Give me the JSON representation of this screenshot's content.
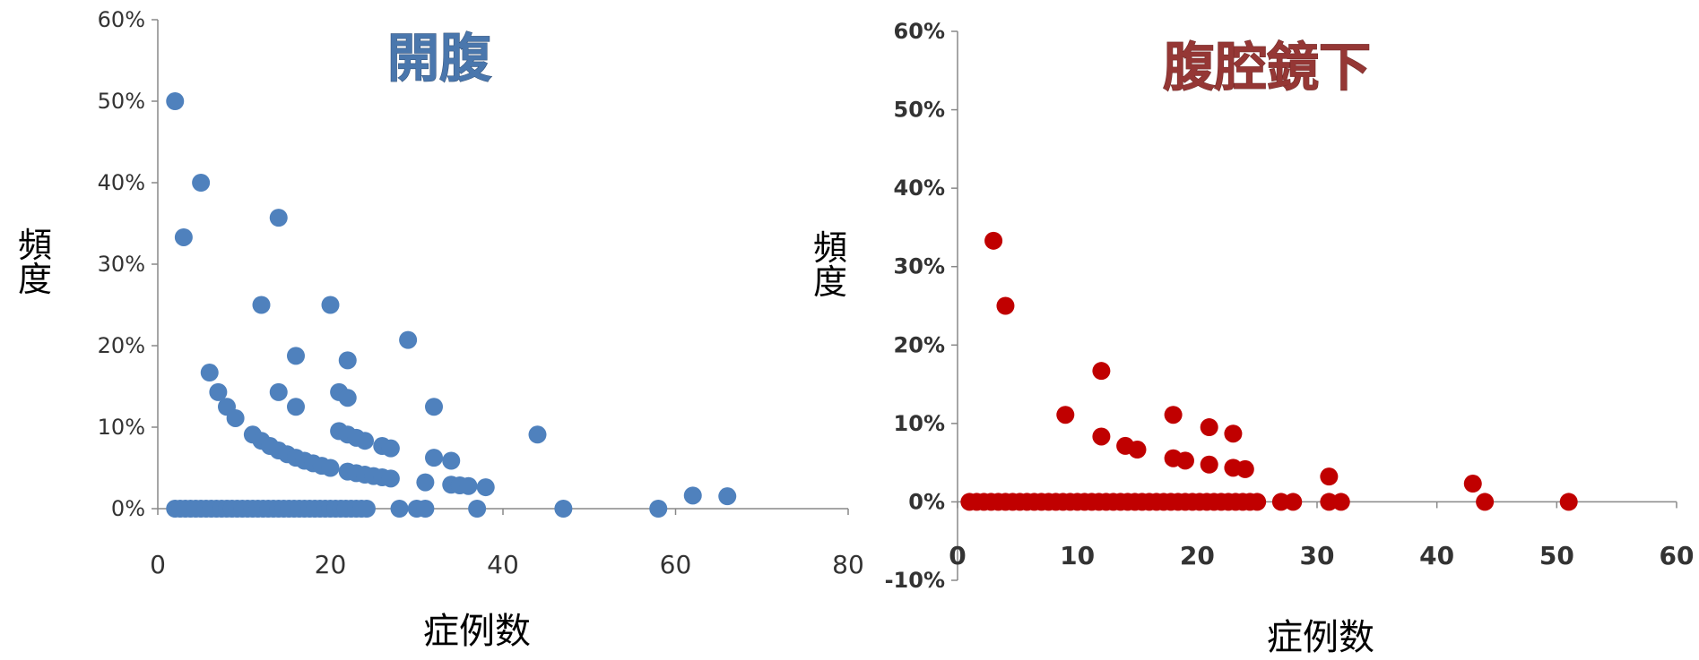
{
  "chart_data": [
    {
      "type": "scatter",
      "title": "開腹",
      "xlabel": "症例数",
      "ylabel": "頻度",
      "xlim": [
        0,
        80
      ],
      "ylim": [
        0,
        0.6
      ],
      "xticks": [
        "0",
        "20",
        "40",
        "60",
        "80"
      ],
      "yticks": [
        "0%",
        "10%",
        "20%",
        "30%",
        "40%",
        "50%",
        "60%"
      ],
      "grid": false,
      "title_color": "#4a77ad",
      "marker_color": "#4f81bd",
      "series": [
        {
          "points": [
            [
              2,
              0.5
            ],
            [
              3,
              0.333
            ],
            [
              5,
              0.4
            ],
            [
              6,
              0.167
            ],
            [
              7,
              0.143
            ],
            [
              8,
              0.125
            ],
            [
              9,
              0.111
            ],
            [
              11,
              0.0909
            ],
            [
              12,
              0.0833
            ],
            [
              12,
              0.25
            ],
            [
              13,
              0.0769
            ],
            [
              14,
              0.0714
            ],
            [
              14,
              0.357
            ],
            [
              14,
              0.143
            ],
            [
              15,
              0.0667
            ],
            [
              16,
              0.0625
            ],
            [
              16,
              0.1875
            ],
            [
              16,
              0.125
            ],
            [
              17,
              0.0588
            ],
            [
              18,
              0.0556
            ],
            [
              19,
              0.0526
            ],
            [
              20,
              0.05
            ],
            [
              20,
              0.25
            ],
            [
              21,
              0.0952
            ],
            [
              21,
              0.143
            ],
            [
              22,
              0.0909
            ],
            [
              22,
              0.182
            ],
            [
              22,
              0.136
            ],
            [
              22,
              0.0455
            ],
            [
              23,
              0.087
            ],
            [
              23,
              0.0435
            ],
            [
              24,
              0.0833
            ],
            [
              24,
              0.0417
            ],
            [
              25,
              0.04
            ],
            [
              26,
              0.0385
            ],
            [
              26,
              0.0769
            ],
            [
              27,
              0.074
            ],
            [
              27,
              0.037
            ],
            [
              29,
              0.207
            ],
            [
              31,
              0.0323
            ],
            [
              32,
              0.125
            ],
            [
              32,
              0.0625
            ],
            [
              34,
              0.0588
            ],
            [
              34,
              0.0294
            ],
            [
              35,
              0.0286
            ],
            [
              36,
              0.0278
            ],
            [
              38,
              0.0263
            ],
            [
              44,
              0.0909
            ],
            [
              62,
              0.0161
            ],
            [
              66,
              0.0152
            ],
            [
              2,
              0
            ],
            [
              2.6,
              0
            ],
            [
              3.2,
              0
            ],
            [
              3.8,
              0
            ],
            [
              4.4,
              0
            ],
            [
              5,
              0
            ],
            [
              5.6,
              0
            ],
            [
              6.2,
              0
            ],
            [
              6.8,
              0
            ],
            [
              7.4,
              0
            ],
            [
              8,
              0
            ],
            [
              8.6,
              0
            ],
            [
              9.2,
              0
            ],
            [
              9.8,
              0
            ],
            [
              10.4,
              0
            ],
            [
              11,
              0
            ],
            [
              11.6,
              0
            ],
            [
              12.2,
              0
            ],
            [
              12.8,
              0
            ],
            [
              13.4,
              0
            ],
            [
              14,
              0
            ],
            [
              14.6,
              0
            ],
            [
              15.2,
              0
            ],
            [
              15.8,
              0
            ],
            [
              16.4,
              0
            ],
            [
              17,
              0
            ],
            [
              17.6,
              0
            ],
            [
              18.2,
              0
            ],
            [
              18.8,
              0
            ],
            [
              19.4,
              0
            ],
            [
              20,
              0
            ],
            [
              20.6,
              0
            ],
            [
              21.2,
              0
            ],
            [
              21.8,
              0
            ],
            [
              22.4,
              0
            ],
            [
              23,
              0
            ],
            [
              23.6,
              0
            ],
            [
              24.2,
              0
            ],
            [
              28,
              0
            ],
            [
              30,
              0
            ],
            [
              31,
              0
            ],
            [
              37,
              0
            ],
            [
              47,
              0
            ],
            [
              58,
              0
            ]
          ]
        }
      ]
    },
    {
      "type": "scatter",
      "title": "腹腔鏡下",
      "xlabel": "症例数",
      "ylabel": "頻度",
      "xlim": [
        0,
        60
      ],
      "ylim": [
        -0.1,
        0.6
      ],
      "xticks": [
        "0",
        "10",
        "20",
        "30",
        "40",
        "50",
        "60"
      ],
      "yticks": [
        "-10%",
        "0%",
        "10%",
        "20%",
        "30%",
        "40%",
        "50%",
        "60%"
      ],
      "grid": false,
      "title_color": "#953735",
      "marker_color": "#c00000",
      "series": [
        {
          "points": [
            [
              3,
              0.333
            ],
            [
              4,
              0.25
            ],
            [
              9,
              0.111
            ],
            [
              12,
              0.167
            ],
            [
              12,
              0.0833
            ],
            [
              14,
              0.0714
            ],
            [
              15,
              0.0667
            ],
            [
              18,
              0.111
            ],
            [
              18,
              0.0556
            ],
            [
              19,
              0.0526
            ],
            [
              21,
              0.0952
            ],
            [
              21,
              0.0476
            ],
            [
              23,
              0.087
            ],
            [
              23,
              0.0435
            ],
            [
              24,
              0.0417
            ],
            [
              31,
              0.0323
            ],
            [
              43,
              0.0233
            ],
            [
              44,
              0
            ],
            [
              51,
              0
            ],
            [
              1,
              0
            ],
            [
              1.6,
              0
            ],
            [
              2.2,
              0
            ],
            [
              2.8,
              0
            ],
            [
              3.4,
              0
            ],
            [
              4,
              0
            ],
            [
              4.6,
              0
            ],
            [
              5.2,
              0
            ],
            [
              5.8,
              0
            ],
            [
              6.4,
              0
            ],
            [
              7,
              0
            ],
            [
              7.6,
              0
            ],
            [
              8.2,
              0
            ],
            [
              8.8,
              0
            ],
            [
              9.4,
              0
            ],
            [
              10,
              0
            ],
            [
              10.6,
              0
            ],
            [
              11.2,
              0
            ],
            [
              11.8,
              0
            ],
            [
              12.4,
              0
            ],
            [
              13,
              0
            ],
            [
              13.6,
              0
            ],
            [
              14.2,
              0
            ],
            [
              14.8,
              0
            ],
            [
              15.4,
              0
            ],
            [
              16,
              0
            ],
            [
              16.6,
              0
            ],
            [
              17.2,
              0
            ],
            [
              17.8,
              0
            ],
            [
              18.4,
              0
            ],
            [
              19,
              0
            ],
            [
              19.6,
              0
            ],
            [
              20.2,
              0
            ],
            [
              20.8,
              0
            ],
            [
              21.4,
              0
            ],
            [
              22,
              0
            ],
            [
              22.6,
              0
            ],
            [
              23.2,
              0
            ],
            [
              23.8,
              0
            ],
            [
              24.4,
              0
            ],
            [
              25,
              0
            ],
            [
              27,
              0
            ],
            [
              28,
              0
            ],
            [
              31,
              0
            ],
            [
              32,
              0
            ]
          ]
        }
      ]
    }
  ]
}
